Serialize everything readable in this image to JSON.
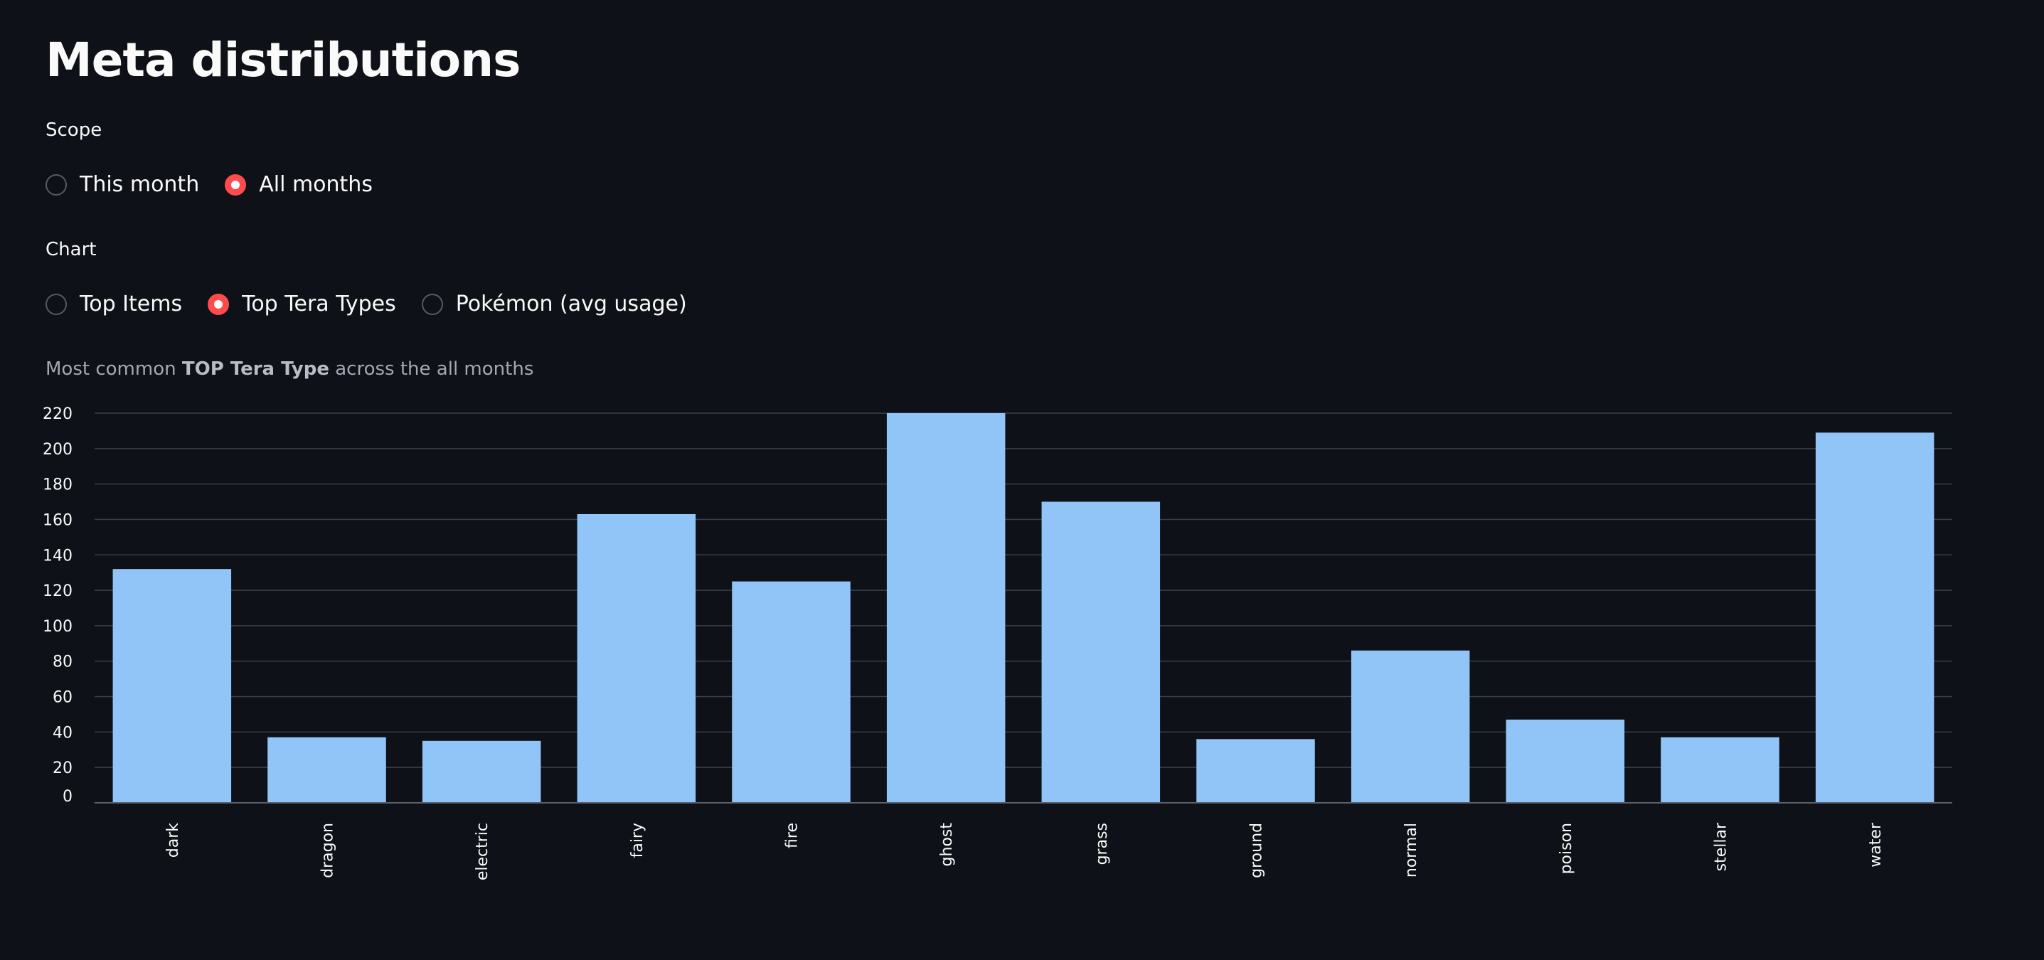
{
  "page": {
    "title": "Meta distributions"
  },
  "scope": {
    "label": "Scope",
    "options": [
      "This month",
      "All months"
    ],
    "selected": "All months"
  },
  "chart_selector": {
    "label": "Chart",
    "options": [
      "Top Items",
      "Top Tera Types",
      "Pokémon (avg usage)"
    ],
    "selected": "Top Tera Types"
  },
  "caption": {
    "prefix": "Most common ",
    "bold": "TOP Tera Type",
    "suffix": " across the all months"
  },
  "colors": {
    "background": "#0e1117",
    "bar": "#92c5f7",
    "accent_radio": "#ff4b4b",
    "grid": "#3a3f4b"
  },
  "chart_data": {
    "type": "bar",
    "categories": [
      "dark",
      "dragon",
      "electric",
      "fairy",
      "fire",
      "ghost",
      "grass",
      "ground",
      "normal",
      "poison",
      "stellar",
      "water"
    ],
    "values": [
      132,
      37,
      35,
      163,
      125,
      220,
      170,
      36,
      86,
      47,
      37,
      209
    ],
    "title": "",
    "xlabel": "",
    "ylabel": "",
    "ylim": [
      0,
      220
    ],
    "yticks": [
      0,
      20,
      40,
      60,
      80,
      100,
      120,
      140,
      160,
      180,
      200,
      220
    ],
    "grid": true
  }
}
